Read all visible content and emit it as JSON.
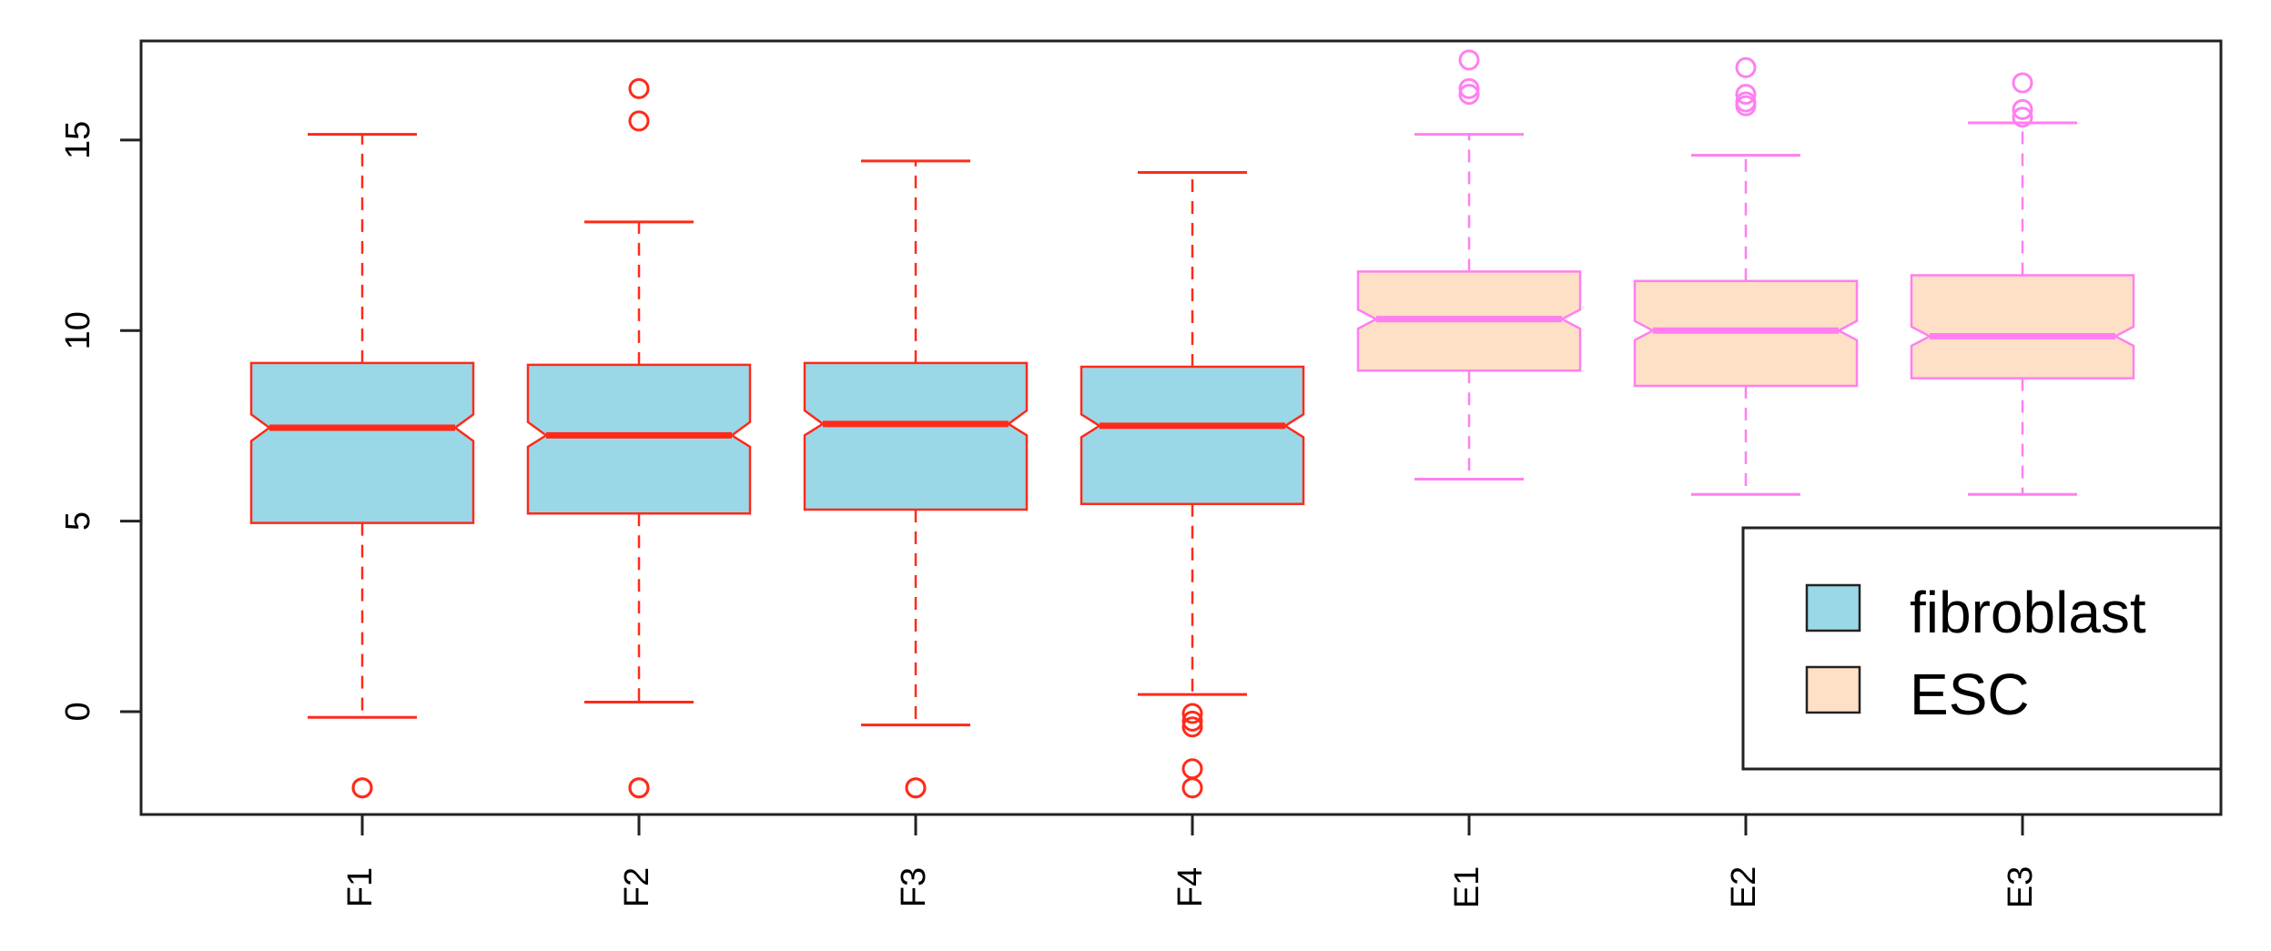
{
  "chart_data": {
    "type": "boxplot",
    "title": "",
    "xlabel": "",
    "ylabel": "",
    "ylim": [
      -2.7,
      17.6
    ],
    "yticks": [
      0,
      5,
      10,
      15
    ],
    "notched": true,
    "categories": [
      "F1",
      "F2",
      "F3",
      "F4",
      "E1",
      "E2",
      "E3"
    ],
    "groups": [
      {
        "name": "fibroblast",
        "fill": "#9ad8e8",
        "stroke": "#ff2a1a",
        "members": [
          "F1",
          "F2",
          "F3",
          "F4"
        ]
      },
      {
        "name": "ESC",
        "fill": "#fde0c5",
        "stroke": "#ff7ff0",
        "members": [
          "E1",
          "E2",
          "E3"
        ]
      }
    ],
    "boxes": [
      {
        "label": "F1",
        "group": "fibroblast",
        "whisker_low": -0.15,
        "q1": 4.95,
        "median": 7.45,
        "q3": 9.15,
        "whisker_high": 15.15,
        "notch": [
          7.1,
          7.8
        ],
        "outliers": [
          -2.0,
          -2.0
        ]
      },
      {
        "label": "F2",
        "group": "fibroblast",
        "whisker_low": 0.25,
        "q1": 5.2,
        "median": 7.25,
        "q3": 9.1,
        "whisker_high": 12.85,
        "notch": [
          6.95,
          7.6
        ],
        "outliers": [
          16.35,
          15.5,
          -2.0,
          -2.0
        ]
      },
      {
        "label": "F3",
        "group": "fibroblast",
        "whisker_low": -0.35,
        "q1": 5.3,
        "median": 7.55,
        "q3": 9.15,
        "whisker_high": 14.45,
        "notch": [
          7.25,
          7.9
        ],
        "outliers": [
          -2.0,
          -2.0
        ]
      },
      {
        "label": "F4",
        "group": "fibroblast",
        "whisker_low": 0.45,
        "q1": 5.45,
        "median": 7.5,
        "q3": 9.05,
        "whisker_high": 14.15,
        "notch": [
          7.2,
          7.8
        ],
        "outliers": [
          -0.05,
          -0.25,
          -0.4,
          -1.5,
          -2.0
        ]
      },
      {
        "label": "E1",
        "group": "ESC",
        "whisker_low": 6.1,
        "q1": 8.95,
        "median": 10.3,
        "q3": 11.55,
        "whisker_high": 15.15,
        "notch": [
          10.05,
          10.55
        ],
        "outliers": [
          17.1,
          16.35,
          16.2
        ]
      },
      {
        "label": "E2",
        "group": "ESC",
        "whisker_low": 5.7,
        "q1": 8.55,
        "median": 10.0,
        "q3": 11.3,
        "whisker_high": 14.6,
        "notch": [
          9.75,
          10.25
        ],
        "outliers": [
          16.9,
          16.2,
          16.0,
          15.9
        ]
      },
      {
        "label": "E3",
        "group": "ESC",
        "whisker_low": 5.7,
        "q1": 8.75,
        "median": 9.85,
        "q3": 11.45,
        "whisker_high": 15.45,
        "notch": [
          9.6,
          10.1
        ],
        "outliers": [
          16.5,
          15.8,
          15.6
        ]
      }
    ],
    "legend": {
      "placement": "bottom-right",
      "entries": [
        {
          "label": "fibroblast",
          "color": "#9ad8e8"
        },
        {
          "label": "ESC",
          "color": "#fde0c5"
        }
      ]
    }
  }
}
